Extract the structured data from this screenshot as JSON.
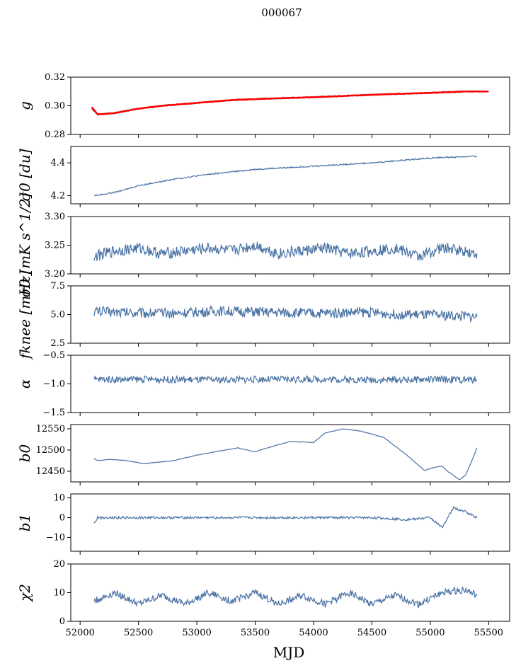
{
  "figure": {
    "title": "000067",
    "xlabel": "MJD",
    "xticks": [
      "52000",
      "52500",
      "53000",
      "53500",
      "54000",
      "54500",
      "55000",
      "55500"
    ],
    "colors": {
      "series": "#4a72a4",
      "fit": "#ff0000"
    }
  },
  "chart_data": [
    {
      "type": "line",
      "key": "g",
      "ylabel": "g",
      "xlim": [
        51920,
        55680
      ],
      "ylim": [
        0.28,
        0.32
      ],
      "yticks": [
        "0.28",
        "0.30",
        "0.32"
      ],
      "series": [
        {
          "name": "g",
          "color": "#4a72a4",
          "x": [
            52100,
            52150,
            52300,
            52500,
            52700,
            53000,
            53300,
            53600,
            54000,
            54300,
            54600,
            55000,
            55300,
            55500
          ],
          "values": [
            0.298,
            0.294,
            0.295,
            0.298,
            0.3,
            0.302,
            0.304,
            0.305,
            0.306,
            0.307,
            0.308,
            0.309,
            0.31,
            0.31
          ]
        },
        {
          "name": "g fit",
          "color": "#ff0000",
          "x": [
            52100,
            52150,
            52300,
            52500,
            52700,
            53000,
            53300,
            53600,
            54000,
            54300,
            54600,
            55000,
            55300,
            55500
          ],
          "values": [
            0.299,
            0.294,
            0.295,
            0.298,
            0.3,
            0.302,
            0.304,
            0.305,
            0.306,
            0.307,
            0.308,
            0.309,
            0.31,
            0.31
          ]
        }
      ]
    },
    {
      "type": "line",
      "key": "sigma0",
      "ylabel": "σ0 [du]",
      "xlim": [
        51920,
        55680
      ],
      "ylim": [
        4.15,
        4.5
      ],
      "yticks": [
        "4.2",
        "4.4"
      ],
      "series": [
        {
          "name": "sigma0",
          "color": "#4a72a4",
          "x": [
            52120,
            52300,
            52500,
            52800,
            53100,
            53500,
            54000,
            54500,
            55000,
            55400
          ],
          "values": [
            4.2,
            4.22,
            4.26,
            4.3,
            4.33,
            4.36,
            4.38,
            4.4,
            4.43,
            4.44
          ]
        }
      ]
    },
    {
      "type": "line",
      "key": "sigma0_mk",
      "ylabel": "σ0 [mK s^1/2]",
      "xlim": [
        51920,
        55680
      ],
      "ylim": [
        3.2,
        3.3
      ],
      "yticks": [
        "3.20",
        "3.25",
        "3.30"
      ],
      "series": [
        {
          "name": "sigma0_mk",
          "color": "#4a72a4",
          "x": [
            52120,
            52300,
            52500,
            52700,
            52900,
            53100,
            53300,
            53500,
            53700,
            53900,
            54100,
            54300,
            54500,
            54700,
            54900,
            55100,
            55300,
            55400
          ],
          "values": [
            3.23,
            3.24,
            3.245,
            3.235,
            3.24,
            3.245,
            3.24,
            3.25,
            3.235,
            3.24,
            3.245,
            3.235,
            3.24,
            3.245,
            3.23,
            3.245,
            3.24,
            3.235
          ]
        }
      ]
    },
    {
      "type": "line",
      "key": "fknee",
      "ylabel": "fknee [mHz]",
      "xlim": [
        51920,
        55680
      ],
      "ylim": [
        2.5,
        7.5
      ],
      "yticks": [
        "2.5",
        "5.0",
        "7.5"
      ],
      "series": [
        {
          "name": "fknee",
          "color": "#4a72a4",
          "x": [
            52120,
            52400,
            52800,
            53200,
            53600,
            54000,
            54400,
            54800,
            55200,
            55400
          ],
          "values": [
            5.3,
            5.2,
            5.1,
            5.3,
            5.2,
            5.1,
            5.2,
            5.0,
            4.9,
            4.8
          ]
        }
      ]
    },
    {
      "type": "line",
      "key": "alpha",
      "ylabel": "α",
      "xlim": [
        51920,
        55680
      ],
      "ylim": [
        -1.5,
        -0.5
      ],
      "yticks": [
        "−1.5",
        "−1.0",
        "−0.5"
      ],
      "series": [
        {
          "name": "alpha",
          "color": "#4a72a4",
          "x": [
            52120,
            52600,
            53100,
            53600,
            54100,
            54600,
            55100,
            55400
          ],
          "values": [
            -0.92,
            -0.92,
            -0.93,
            -0.92,
            -0.92,
            -0.93,
            -0.92,
            -0.93
          ]
        }
      ]
    },
    {
      "type": "line",
      "key": "b0",
      "ylabel": "b0",
      "xlim": [
        51920,
        55680
      ],
      "ylim": [
        12425,
        12560
      ],
      "yticks": [
        "12450",
        "12500",
        "12550"
      ],
      "series": [
        {
          "name": "b0",
          "color": "#4a72a4",
          "x": [
            52120,
            52150,
            52250,
            52400,
            52550,
            52800,
            53000,
            53200,
            53350,
            53500,
            53600,
            53800,
            54000,
            54100,
            54250,
            54400,
            54600,
            54800,
            54950,
            55050,
            55100,
            55150,
            55200,
            55250,
            55300,
            55350,
            55400
          ],
          "values": [
            12480,
            12475,
            12478,
            12475,
            12468,
            12475,
            12488,
            12498,
            12505,
            12496,
            12505,
            12520,
            12518,
            12540,
            12550,
            12545,
            12530,
            12488,
            12452,
            12460,
            12462,
            12450,
            12440,
            12430,
            12440,
            12470,
            12505
          ]
        }
      ]
    },
    {
      "type": "line",
      "key": "b1",
      "ylabel": "b1",
      "xlim": [
        51920,
        55680
      ],
      "ylim": [
        -17,
        12
      ],
      "yticks": [
        "−10",
        "0",
        "10"
      ],
      "series": [
        {
          "name": "b1",
          "color": "#4a72a4",
          "x": [
            52120,
            52150,
            52500,
            53000,
            53500,
            54000,
            54500,
            54800,
            55000,
            55100,
            55200,
            55300,
            55400
          ],
          "values": [
            -3,
            0,
            0,
            0,
            0,
            0,
            0,
            -1,
            0,
            -5,
            5,
            3,
            0
          ]
        }
      ]
    },
    {
      "type": "line",
      "key": "chi2",
      "ylabel": "χ2",
      "xlim": [
        51920,
        55680
      ],
      "ylim": [
        0,
        20
      ],
      "yticks": [
        "0",
        "10",
        "20"
      ],
      "series": [
        {
          "name": "chi2",
          "color": "#4a72a4",
          "x": [
            52120,
            52300,
            52500,
            52700,
            52900,
            53100,
            53300,
            53500,
            53700,
            53900,
            54100,
            54300,
            54500,
            54700,
            54900,
            55100,
            55300,
            55400
          ],
          "values": [
            7,
            10,
            6,
            9,
            6,
            10,
            7,
            10,
            6,
            9,
            6,
            10,
            6,
            9,
            6,
            10,
            11,
            9
          ]
        }
      ]
    }
  ]
}
